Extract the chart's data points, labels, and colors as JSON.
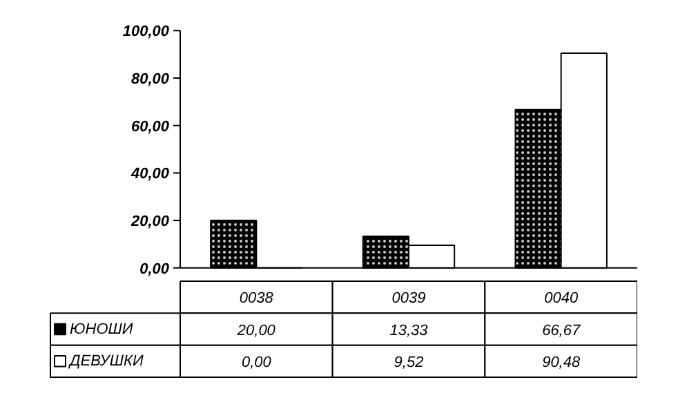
{
  "chart_data": {
    "type": "bar",
    "categories": [
      "0038",
      "0039",
      "0040"
    ],
    "series": [
      {
        "name": "ЮНОШИ",
        "color": "#000000",
        "values": [
          20.0,
          13.33,
          66.67
        ],
        "value_labels": [
          "20,00",
          "13,33",
          "66,67"
        ]
      },
      {
        "name": "ДЕВУШКИ",
        "color": "#ffffff",
        "values": [
          0.0,
          9.52,
          90.48
        ],
        "value_labels": [
          "0,00",
          "9,52",
          "90,48"
        ]
      }
    ],
    "ylim": [
      0,
      100
    ],
    "yticks": [
      {
        "value": 0,
        "label": "0,00"
      },
      {
        "value": 20,
        "label": "20,00"
      },
      {
        "value": 40,
        "label": "40,00"
      },
      {
        "value": 60,
        "label": "60,00"
      },
      {
        "value": 80,
        "label": "80,00"
      },
      {
        "value": 100,
        "label": "100,00"
      }
    ],
    "legend": "bottom left",
    "grid": false
  }
}
